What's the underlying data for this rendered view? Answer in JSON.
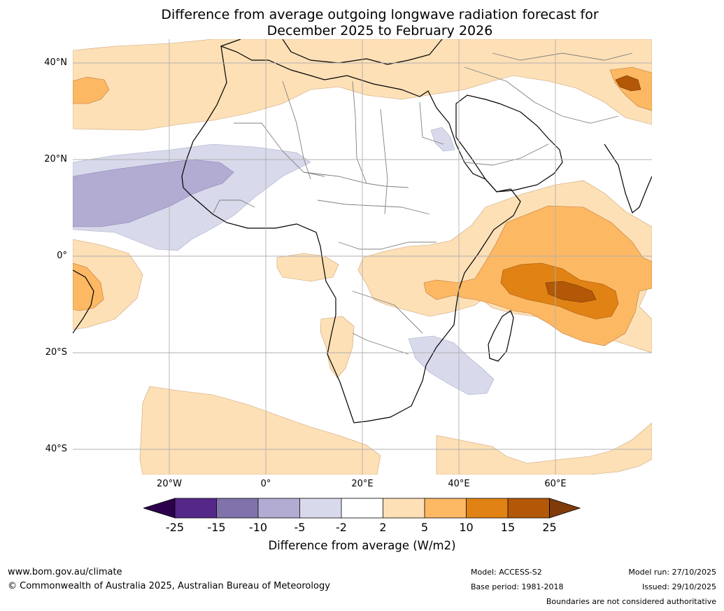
{
  "title": {
    "line1": "Difference from average outgoing longwave radiation forecast for",
    "line2": "December 2025 to February 2026"
  },
  "map": {
    "latitude_labels": [
      "40°N",
      "20°N",
      "0°",
      "20°S",
      "40°S"
    ],
    "longitude_labels": [
      "20°W",
      "0°",
      "20°E",
      "40°E",
      "60°E"
    ],
    "extent": {
      "lon_min": -40,
      "lon_max": 80,
      "lat_min": -45,
      "lat_max": 45
    },
    "gridlines": true
  },
  "colorbar": {
    "tick_labels": [
      "-25",
      "-15",
      "-10",
      "-5",
      "-2",
      "2",
      "5",
      "10",
      "15",
      "25"
    ],
    "colors": {
      "lt_-25": "#2d004b",
      "-25_-15": "#542788",
      "-15_-10": "#8073ac",
      "-10_-5": "#b2abd2",
      "-5_-2": "#d8daeb",
      "-2_2": "#ffffff",
      "2_5": "#fee0b6",
      "5_10": "#fdb863",
      "10_15": "#e08214",
      "15_25": "#b35806",
      "gt_25": "#7f3b08"
    },
    "label": "Difference from average (W/m2)"
  },
  "footer": {
    "website": "www.bom.gov.au/climate",
    "copyright": "© Commonwealth of Australia 2025, Australian Bureau of Meteorology",
    "model": "Model: ACCESS-S2",
    "base_period": "Base period: 1981-2018",
    "model_run": "Model run: 27/10/2025",
    "issued": "Issued: 29/10/2025",
    "disclaimer": "Boundaries are not considered authoritative"
  }
}
